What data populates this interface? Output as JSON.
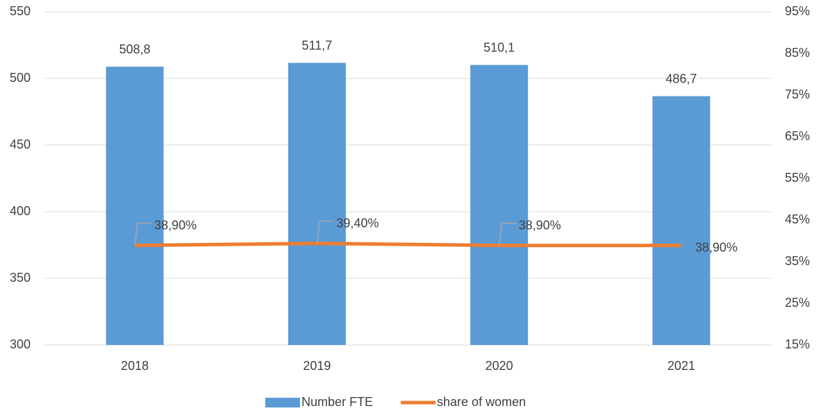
{
  "chart_data": {
    "type": "bar",
    "categories": [
      "2018",
      "2019",
      "2020",
      "2021"
    ],
    "series": [
      {
        "name": "Number FTE",
        "type": "bar",
        "color": "#5b9bd5",
        "values": [
          508.8,
          511.7,
          510.1,
          486.7
        ],
        "value_labels": [
          "508,8",
          "511,7",
          "510,1",
          "486,7"
        ]
      },
      {
        "name": "share of women",
        "type": "line",
        "axis": "y2",
        "color": "#ed7d31",
        "values": [
          38.9,
          39.4,
          38.9,
          38.9
        ],
        "value_labels": [
          "38,90%",
          "39,40%",
          "38,90%",
          "38,90%"
        ]
      }
    ],
    "ylim": [
      300,
      550
    ],
    "yticks": [
      300,
      350,
      400,
      450,
      500,
      550
    ],
    "y2lim": [
      15,
      95
    ],
    "y2ticks": [
      {
        "value": 15,
        "label": "15%"
      },
      {
        "value": 25,
        "label": "25%"
      },
      {
        "value": 35,
        "label": "35%"
      },
      {
        "value": 45,
        "label": "45%"
      },
      {
        "value": 55,
        "label": "55%"
      },
      {
        "value": 65,
        "label": "65%"
      },
      {
        "value": 75,
        "label": "75%"
      },
      {
        "value": 85,
        "label": "85%"
      },
      {
        "value": 95,
        "label": "95%"
      }
    ],
    "grid": true,
    "legend": "bottom"
  }
}
